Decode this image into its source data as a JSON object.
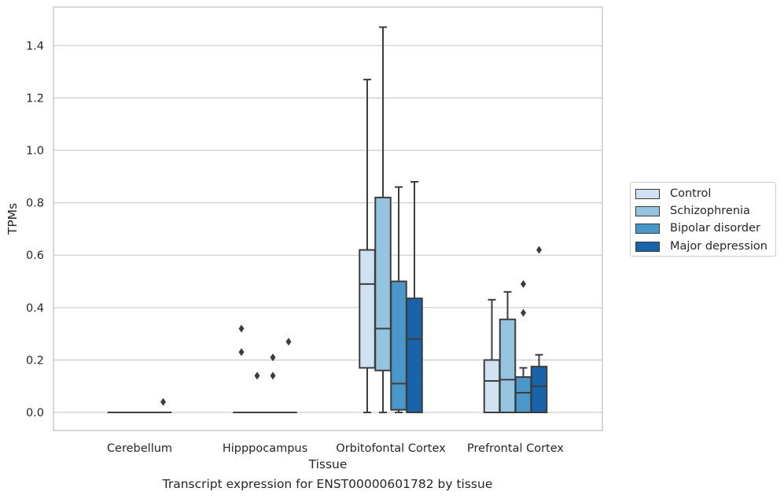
{
  "caption": "Transcript expression for ENST00000601782 by tissue",
  "chart_data": {
    "type": "box",
    "xlabel": "Tissue",
    "ylabel": "TPMs",
    "ylim": [
      -0.07,
      1.55
    ],
    "yticks": [
      0.0,
      0.2,
      0.4,
      0.6,
      0.8,
      1.0,
      1.2,
      1.4
    ],
    "ytick_labels": [
      "0.0",
      "0.2",
      "0.4",
      "0.6",
      "0.8",
      "1.0",
      "1.2",
      "1.4"
    ],
    "grid": "horizontal",
    "legend_position": "outside right",
    "categories": [
      "Cerebellum",
      "Hipppocampus",
      "Orbitofontal Cortex",
      "Prefrontal Cortex"
    ],
    "series": [
      {
        "name": "Control",
        "color": "#d0e1f2",
        "boxes": [
          {
            "min": 0,
            "q1": 0,
            "median": 0,
            "q3": 0,
            "max": 0,
            "outliers": []
          },
          {
            "min": 0,
            "q1": 0,
            "median": 0,
            "q3": 0,
            "max": 0,
            "outliers": [
              0.32,
              0.23
            ]
          },
          {
            "min": 0,
            "q1": 0.17,
            "median": 0.49,
            "q3": 0.62,
            "max": 1.27,
            "outliers": []
          },
          {
            "min": 0,
            "q1": 0,
            "median": 0.12,
            "q3": 0.2,
            "max": 0.43,
            "outliers": []
          }
        ]
      },
      {
        "name": "Schizophrenia",
        "color": "#94c4df",
        "boxes": [
          {
            "min": 0,
            "q1": 0,
            "median": 0,
            "q3": 0,
            "max": 0,
            "outliers": []
          },
          {
            "min": 0,
            "q1": 0,
            "median": 0,
            "q3": 0,
            "max": 0,
            "outliers": [
              0.14
            ]
          },
          {
            "min": 0,
            "q1": 0.16,
            "median": 0.32,
            "q3": 0.82,
            "max": 1.47,
            "outliers": []
          },
          {
            "min": 0,
            "q1": 0,
            "median": 0.125,
            "q3": 0.355,
            "max": 0.46,
            "outliers": []
          }
        ]
      },
      {
        "name": "Bipolar disorder",
        "color": "#4a98c9",
        "boxes": [
          {
            "min": 0,
            "q1": 0,
            "median": 0,
            "q3": 0,
            "max": 0,
            "outliers": []
          },
          {
            "min": 0,
            "q1": 0,
            "median": 0,
            "q3": 0,
            "max": 0,
            "outliers": [
              0.21,
              0.14
            ]
          },
          {
            "min": 0,
            "q1": 0.01,
            "median": 0.11,
            "q3": 0.5,
            "max": 0.86,
            "outliers": []
          },
          {
            "min": 0,
            "q1": 0,
            "median": 0.075,
            "q3": 0.135,
            "max": 0.17,
            "outliers": [
              0.49,
              0.38
            ]
          }
        ]
      },
      {
        "name": "Major depression",
        "color": "#1764ab",
        "boxes": [
          {
            "min": 0,
            "q1": 0,
            "median": 0,
            "q3": 0,
            "max": 0,
            "outliers": [
              0.04
            ]
          },
          {
            "min": 0,
            "q1": 0,
            "median": 0,
            "q3": 0,
            "max": 0,
            "outliers": [
              0.27
            ]
          },
          {
            "min": 0,
            "q1": 0,
            "median": 0.28,
            "q3": 0.435,
            "max": 0.88,
            "outliers": []
          },
          {
            "min": 0,
            "q1": 0,
            "median": 0.1,
            "q3": 0.175,
            "max": 0.22,
            "outliers": [
              0.62
            ]
          }
        ]
      }
    ]
  }
}
